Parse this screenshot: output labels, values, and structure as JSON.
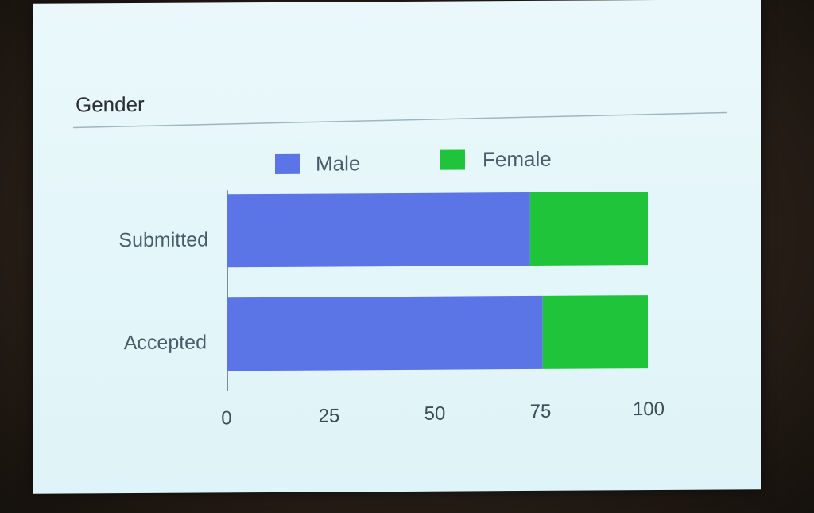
{
  "chart_data": {
    "type": "bar",
    "orientation": "horizontal",
    "stacked": true,
    "title": "Gender",
    "categories": [
      "Submitted",
      "Accepted"
    ],
    "series": [
      {
        "name": "Male",
        "color": "#5b74e6",
        "values": [
          72,
          75
        ]
      },
      {
        "name": "Female",
        "color": "#1fc43a",
        "values": [
          28,
          25
        ]
      }
    ],
    "xlim": [
      0,
      100
    ],
    "xticks": [
      "0",
      "25",
      "50",
      "75",
      "100"
    ],
    "legend_position": "top",
    "grid": false
  }
}
